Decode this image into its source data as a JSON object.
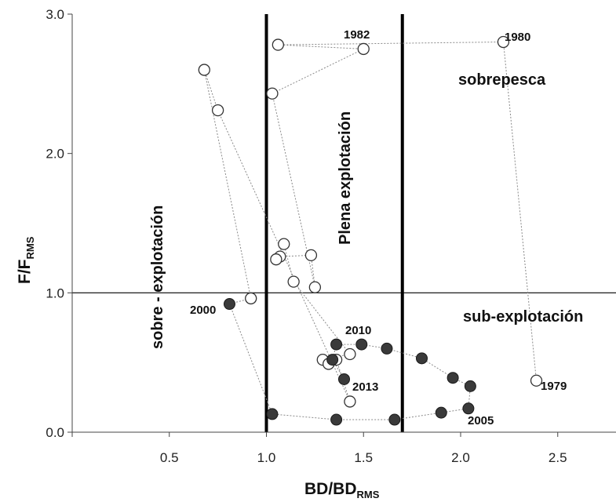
{
  "chart_data": {
    "type": "scatter",
    "title": "",
    "xlabel": "BD/BD",
    "xlabel_sub": "RMS",
    "ylabel": "F/F",
    "ylabel_sub": "RMS",
    "xlim": [
      0,
      2.8
    ],
    "ylim": [
      0,
      3.0
    ],
    "x_ticks": [
      {
        "value": 0.5,
        "label": "0.5"
      },
      {
        "value": 1.0,
        "label": "1.0"
      },
      {
        "value": 1.5,
        "label": "1.5"
      },
      {
        "value": 2.0,
        "label": "2.0"
      },
      {
        "value": 2.5,
        "label": "2.5"
      }
    ],
    "y_ticks": [
      {
        "value": 0.0,
        "label": "0.0"
      },
      {
        "value": 1.0,
        "label": "1.0"
      },
      {
        "value": 2.0,
        "label": "2.0"
      },
      {
        "value": 3.0,
        "label": "3.0"
      }
    ],
    "reference_lines": {
      "vertical": [
        1.0,
        1.7
      ],
      "horizontal": [
        1.0
      ]
    },
    "zone_labels": {
      "overfishing": "sobrepesca",
      "full_exploitation": "Plena explotación",
      "over_exploitation": "sobre - explotación",
      "under_exploitation": "sub-explotación"
    },
    "year_labels": [
      "1979",
      "1980",
      "1982",
      "2000",
      "2005",
      "2010",
      "2013"
    ],
    "grid": false,
    "legend": "none",
    "colors": {
      "open_marker_fill": "#ffffff",
      "filled_marker": "#3a3a3a",
      "trajectory": "#8a8a8a",
      "reference_line": "#000000"
    },
    "series": [
      {
        "marker": "open",
        "points": [
          {
            "x": 2.39,
            "y": 0.37
          },
          {
            "x": 2.22,
            "y": 2.8
          },
          {
            "x": 1.06,
            "y": 2.78
          },
          {
            "x": 1.5,
            "y": 2.75
          },
          {
            "x": 1.03,
            "y": 2.43
          },
          {
            "x": 1.25,
            "y": 1.04
          },
          {
            "x": 1.23,
            "y": 1.27
          },
          {
            "x": 1.07,
            "y": 1.26
          },
          {
            "x": 1.05,
            "y": 1.24
          },
          {
            "x": 1.09,
            "y": 1.35
          },
          {
            "x": 1.14,
            "y": 1.08
          },
          {
            "x": 1.43,
            "y": 0.56
          },
          {
            "x": 1.29,
            "y": 0.52
          },
          {
            "x": 1.32,
            "y": 0.49
          },
          {
            "x": 1.36,
            "y": 0.52
          },
          {
            "x": 1.43,
            "y": 0.22
          },
          {
            "x": 0.75,
            "y": 2.31
          },
          {
            "x": 0.68,
            "y": 2.6
          },
          {
            "x": 0.92,
            "y": 0.96
          }
        ]
      },
      {
        "marker": "filled",
        "points": [
          {
            "x": 0.81,
            "y": 0.92
          },
          {
            "x": 1.03,
            "y": 0.13
          },
          {
            "x": 1.36,
            "y": 0.09
          },
          {
            "x": 1.66,
            "y": 0.09
          },
          {
            "x": 1.9,
            "y": 0.14
          },
          {
            "x": 2.04,
            "y": 0.17
          },
          {
            "x": 2.05,
            "y": 0.33
          },
          {
            "x": 1.96,
            "y": 0.39
          },
          {
            "x": 1.8,
            "y": 0.53
          },
          {
            "x": 1.62,
            "y": 0.6
          },
          {
            "x": 1.49,
            "y": 0.63
          },
          {
            "x": 1.36,
            "y": 0.63
          },
          {
            "x": 1.34,
            "y": 0.52
          },
          {
            "x": 1.4,
            "y": 0.38
          }
        ]
      }
    ]
  }
}
